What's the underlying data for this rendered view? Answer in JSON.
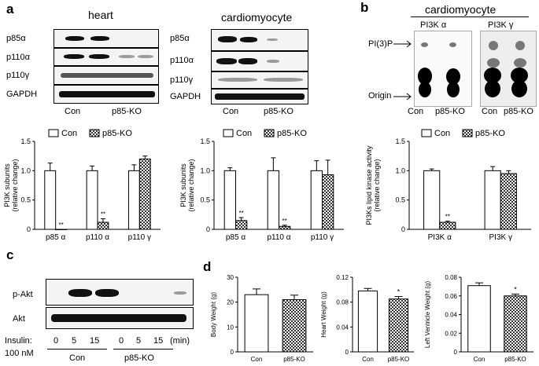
{
  "panels": {
    "a": {
      "letter": "a",
      "heart": {
        "title": "heart",
        "rows": [
          "p85α",
          "p110α",
          "p110γ",
          "GAPDH"
        ],
        "groups": [
          "Con",
          "p85-KO"
        ]
      },
      "cardio": {
        "title": "cardiomyocyte",
        "rows": [
          "p85α",
          "p110α",
          "p110γ",
          "GAPDH"
        ],
        "groups": [
          "Con",
          "p85-KO"
        ]
      }
    },
    "b": {
      "letter": "b",
      "title": "cardiomyocyte",
      "sub1": "PI3K α",
      "sub2": "PI3K γ",
      "pi3p": "PI(3)P",
      "origin": "Origin",
      "groups": [
        "Con",
        "p85-KO",
        "Con",
        "p85-KO"
      ]
    },
    "c": {
      "letter": "c",
      "rows": [
        "p-Akt",
        "Akt"
      ],
      "insulin_label": "Insulin:",
      "conc_label": "100 nM",
      "times": [
        "0",
        "5",
        "15",
        "0",
        "5",
        "15"
      ],
      "unit": "(min)",
      "groups": [
        "Con",
        "p85-KO"
      ]
    },
    "d": {
      "letter": "d"
    }
  },
  "chart_data": [
    {
      "id": "a-heart",
      "type": "bar",
      "ylabel": "PI3K subunits\n(relative change)",
      "ylim": [
        0,
        1.5
      ],
      "yticks": [
        "0",
        "0.5",
        "1.0",
        "1.5"
      ],
      "categories": [
        "p85 α",
        "p110 α",
        "p110 γ"
      ],
      "legend": [
        "Con",
        "p85-KO"
      ],
      "series": [
        {
          "name": "Con",
          "values": [
            1.0,
            1.0,
            1.0
          ],
          "errors": [
            0.13,
            0.08,
            0.1
          ]
        },
        {
          "name": "p85-KO",
          "values": [
            0.0,
            0.12,
            1.2
          ],
          "errors": [
            0.0,
            0.06,
            0.05
          ]
        }
      ],
      "annotations": [
        "**",
        "**"
      ]
    },
    {
      "id": "a-cardio",
      "type": "bar",
      "ylabel": "PI3K subunits\n(relative change)",
      "ylim": [
        0,
        1.5
      ],
      "yticks": [
        "0",
        "0.5",
        "1.0",
        "1.5"
      ],
      "categories": [
        "p85 α",
        "p110 α",
        "p110 γ"
      ],
      "legend": [
        "Con",
        "p85-KO"
      ],
      "series": [
        {
          "name": "Con",
          "values": [
            1.0,
            1.0,
            1.0
          ],
          "errors": [
            0.05,
            0.22,
            0.17
          ]
        },
        {
          "name": "p85-KO",
          "values": [
            0.15,
            0.05,
            0.93
          ],
          "errors": [
            0.05,
            0.02,
            0.25
          ]
        }
      ],
      "annotations": [
        "**",
        "**"
      ]
    },
    {
      "id": "b-kinase",
      "type": "bar",
      "ylabel": "PI3Ks lipid kinase activity\n(relative change)",
      "ylim": [
        0,
        1.5
      ],
      "yticks": [
        "0",
        "0.5",
        "1.0",
        "1.5"
      ],
      "categories": [
        "PI3K α",
        "PI3K γ"
      ],
      "legend": [
        "Con",
        "p85-KO"
      ],
      "series": [
        {
          "name": "Con",
          "values": [
            1.0,
            1.0
          ],
          "errors": [
            0.03,
            0.07
          ]
        },
        {
          "name": "p85-KO",
          "values": [
            0.12,
            0.95
          ],
          "errors": [
            0.02,
            0.05
          ]
        }
      ],
      "annotations": [
        "**"
      ]
    },
    {
      "id": "d-body",
      "type": "bar",
      "ylabel": "Body Weight (g)",
      "ylim": [
        0,
        30
      ],
      "yticks": [
        "0",
        "10",
        "20",
        "30"
      ],
      "categories": [
        "Con",
        "p85-KO"
      ],
      "values": [
        23,
        21
      ],
      "errors": [
        2.3,
        1.8
      ],
      "annotations": []
    },
    {
      "id": "d-heart",
      "type": "bar",
      "ylabel": "Heart Weight (g)",
      "ylim": [
        0,
        0.12
      ],
      "yticks": [
        "0",
        "0.04",
        "0.08",
        "0.12"
      ],
      "categories": [
        "Con",
        "p85-KO"
      ],
      "values": [
        0.098,
        0.085
      ],
      "errors": [
        0.004,
        0.004
      ],
      "annotations": [
        "*"
      ]
    },
    {
      "id": "d-lv",
      "type": "bar",
      "ylabel": "Left Ventricle Weight (g)",
      "ylim": [
        0,
        0.08
      ],
      "yticks": [
        "0",
        "0.02",
        "0.04",
        "0.06",
        "0.08"
      ],
      "categories": [
        "Con",
        "p85-KO"
      ],
      "values": [
        0.071,
        0.06
      ],
      "errors": [
        0.003,
        0.002
      ],
      "annotations": [
        "*"
      ]
    }
  ]
}
